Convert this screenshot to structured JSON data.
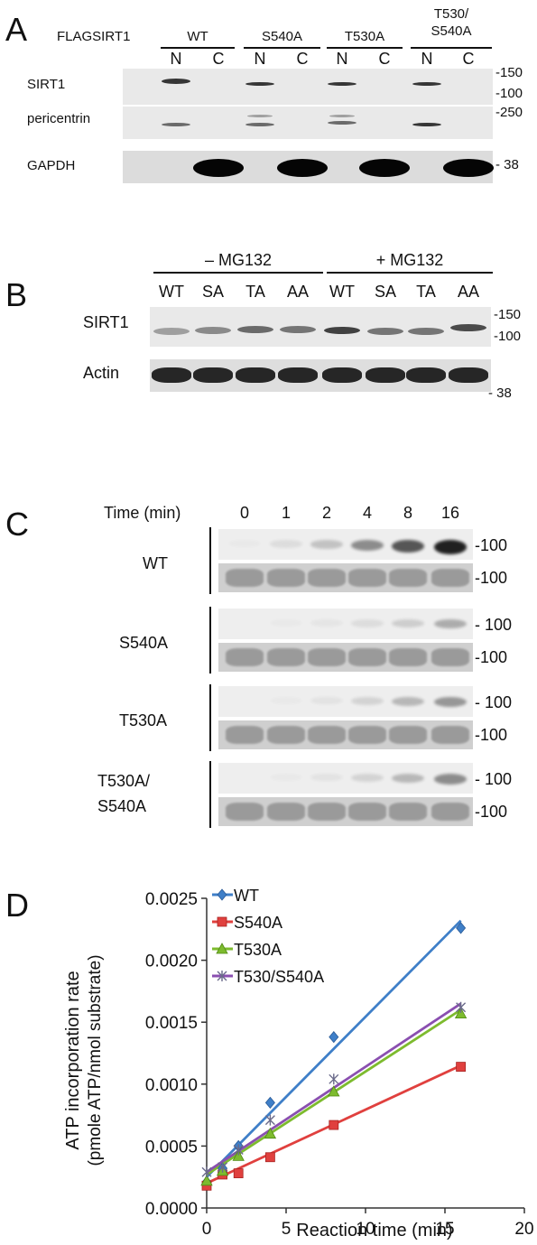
{
  "panelA": {
    "letter": "A",
    "construct_label": "FLAGSIRT1",
    "groups": [
      "WT",
      "S540A",
      "T530A",
      "T530/\nS540A"
    ],
    "lanes": [
      "N",
      "C",
      "N",
      "C",
      "N",
      "C",
      "N",
      "C"
    ],
    "rows": [
      {
        "name": "SIRT1",
        "markers": [
          "-150",
          "-100"
        ]
      },
      {
        "name": "pericentrin",
        "markers": [
          "-250"
        ]
      },
      {
        "name": "GAPDH",
        "markers": [
          "- 38"
        ]
      }
    ]
  },
  "panelB": {
    "letter": "B",
    "conditions": [
      "– MG132",
      "+ MG132"
    ],
    "lanes": [
      "WT",
      "SA",
      "TA",
      "AA",
      "WT",
      "SA",
      "TA",
      "AA"
    ],
    "rows": [
      {
        "name": "SIRT1",
        "markers": [
          "-150",
          "-100"
        ]
      },
      {
        "name": "Actin",
        "markers": [
          "- 38"
        ]
      }
    ]
  },
  "panelC": {
    "letter": "C",
    "time_label": "Time (min)",
    "times": [
      "0",
      "1",
      "2",
      "4",
      "8",
      "16"
    ],
    "groups": [
      {
        "name": "WT",
        "markers": [
          "-100",
          "-100"
        ],
        "intensity": [
          0.02,
          0.08,
          0.2,
          0.45,
          0.7,
          0.95
        ]
      },
      {
        "name": "S540A",
        "markers": [
          "- 100",
          "-100"
        ],
        "intensity": [
          0.0,
          0.02,
          0.04,
          0.08,
          0.15,
          0.3
        ]
      },
      {
        "name": "T530A",
        "markers": [
          "- 100",
          "-100"
        ],
        "intensity": [
          0.0,
          0.02,
          0.05,
          0.12,
          0.25,
          0.4
        ]
      },
      {
        "name": "T530A/\nS540A",
        "markers": [
          "- 100",
          "-100"
        ],
        "intensity": [
          0.0,
          0.02,
          0.05,
          0.12,
          0.25,
          0.45
        ]
      }
    ]
  },
  "panelD": {
    "letter": "D",
    "chart_data": {
      "type": "scatter",
      "xlabel": "Reaction time (min)",
      "ylabel_line1": "ATP incorporation rate",
      "ylabel_line2": "(pmole ATP/nmol substrate)",
      "xlim": [
        0,
        20
      ],
      "ylim": [
        0,
        0.0025
      ],
      "xticks": [
        "0",
        "5",
        "10",
        "15",
        "20"
      ],
      "yticks": [
        "0.0000",
        "0.0005",
        "0.0010",
        "0.0015",
        "0.0020",
        "0.0025"
      ],
      "series": [
        {
          "name": "WT",
          "color": "#3f7fc8",
          "marker": "diamond",
          "x": [
            0,
            1,
            2,
            4,
            8,
            16
          ],
          "y": [
            0.00021,
            0.00032,
            0.0005,
            0.00085,
            0.00138,
            0.00226
          ],
          "fit": [
            0.00025,
            0.00232
          ]
        },
        {
          "name": "S540A",
          "color": "#e0403e",
          "marker": "square",
          "x": [
            0,
            1,
            2,
            4,
            8,
            16
          ],
          "y": [
            0.00018,
            0.00027,
            0.00028,
            0.00041,
            0.00067,
            0.00114
          ],
          "fit": [
            0.0002,
            0.00115
          ]
        },
        {
          "name": "T530A",
          "color": "#7dbb2e",
          "marker": "triangle",
          "x": [
            0,
            1,
            2,
            4,
            8,
            16
          ],
          "y": [
            0.00022,
            0.0003,
            0.00042,
            0.0006,
            0.00094,
            0.00157
          ],
          "fit": [
            0.00027,
            0.0016
          ]
        },
        {
          "name": "T530/S540A",
          "color": "#8a4fb0",
          "marker": "x",
          "x": [
            0,
            1,
            2,
            4,
            8,
            16
          ],
          "y": [
            0.00029,
            0.00033,
            0.00047,
            0.00071,
            0.00104,
            0.00162
          ],
          "fit": [
            0.00029,
            0.00165
          ]
        }
      ],
      "legend_position": "top-left"
    }
  }
}
